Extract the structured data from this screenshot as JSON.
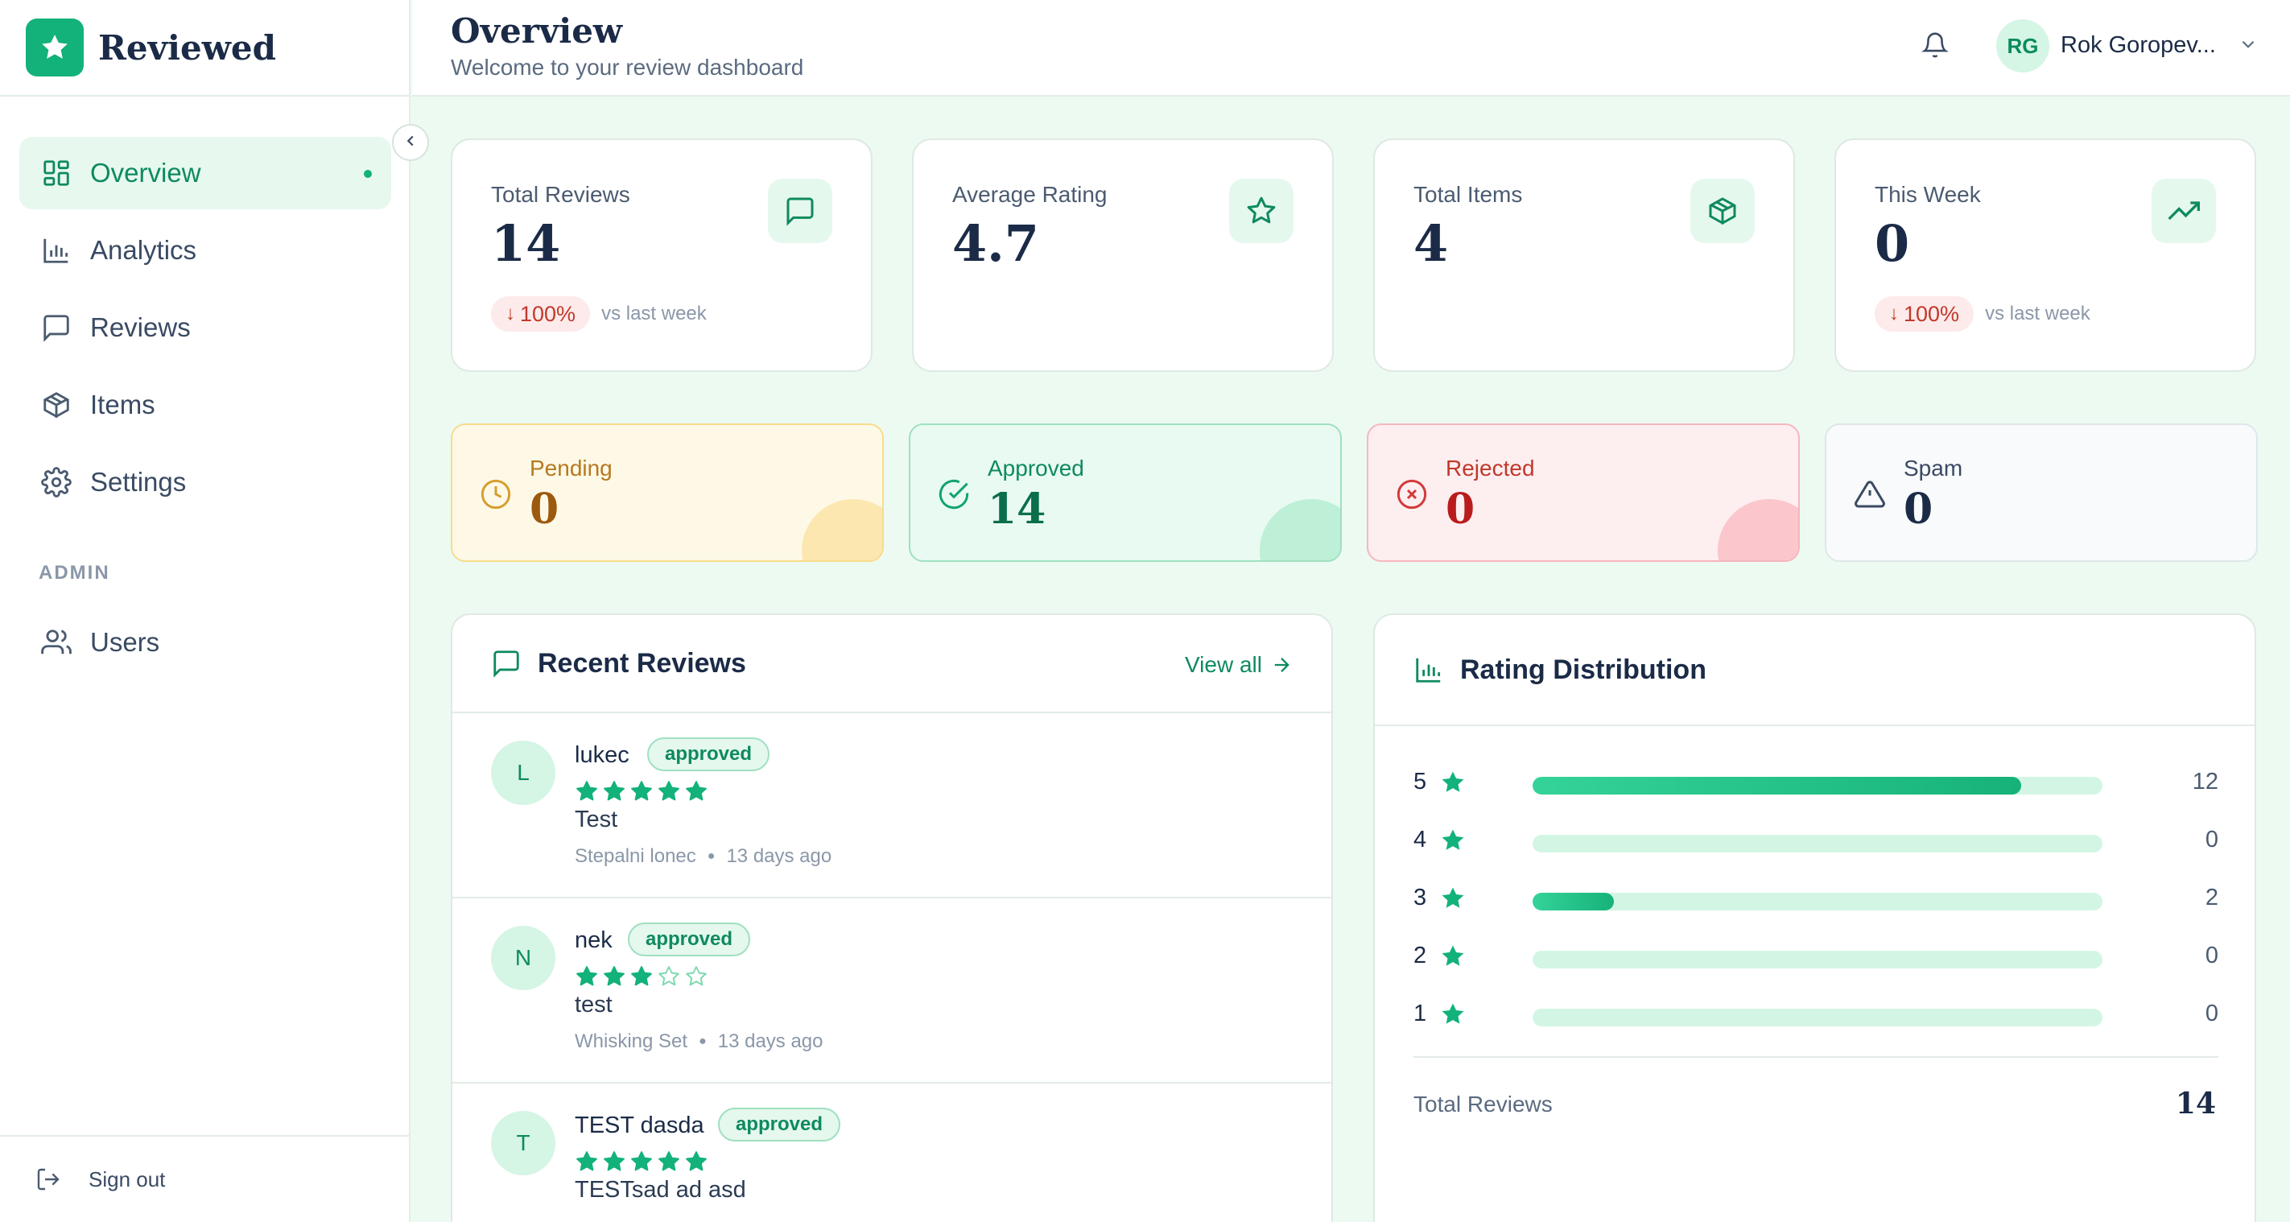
{
  "brand": {
    "name": "Reviewed"
  },
  "nav": {
    "items": [
      {
        "label": "Overview",
        "icon": "layout-grid-icon",
        "active": true
      },
      {
        "label": "Analytics",
        "icon": "bar-chart-icon"
      },
      {
        "label": "Reviews",
        "icon": "message-square-icon"
      },
      {
        "label": "Items",
        "icon": "box-icon"
      },
      {
        "label": "Settings",
        "icon": "gear-icon"
      }
    ],
    "section_admin": "ADMIN",
    "admin_items": [
      {
        "label": "Users",
        "icon": "users-icon"
      }
    ],
    "sign_out": "Sign out"
  },
  "header": {
    "title": "Overview",
    "subtitle": "Welcome to your review dashboard",
    "user_initials": "RG",
    "user_name": "Rok Goropev..."
  },
  "stats": [
    {
      "label": "Total Reviews",
      "value": "14",
      "icon": "message-square-icon",
      "trend": "100%",
      "trend_text": "vs last week"
    },
    {
      "label": "Average Rating",
      "value": "4.7",
      "icon": "star-icon"
    },
    {
      "label": "Total Items",
      "value": "4",
      "icon": "box-icon"
    },
    {
      "label": "This Week",
      "value": "0",
      "icon": "trending-up-icon",
      "trend": "100%",
      "trend_text": "vs last week"
    }
  ],
  "status": [
    {
      "label": "Pending",
      "value": "0",
      "icon": "clock-icon",
      "color": "#b7791f"
    },
    {
      "label": "Approved",
      "value": "14",
      "icon": "check-circle-icon",
      "color": "#0e8a5f"
    },
    {
      "label": "Rejected",
      "value": "0",
      "icon": "x-circle-icon",
      "color": "#c0392b"
    },
    {
      "label": "Spam",
      "value": "0",
      "icon": "alert-triangle-icon",
      "color": "#3a4a63"
    }
  ],
  "recent": {
    "title": "Recent Reviews",
    "view_all": "View all",
    "reviews": [
      {
        "initial": "L",
        "name": "lukec",
        "status": "approved",
        "rating": 5,
        "text": "Test",
        "item": "Stepalni lonec",
        "time": "13 days ago"
      },
      {
        "initial": "N",
        "name": "nek",
        "status": "approved",
        "rating": 3,
        "text": "test",
        "item": "Whisking Set",
        "time": "13 days ago"
      },
      {
        "initial": "T",
        "name": "TEST dasda",
        "status": "approved",
        "rating": 5,
        "text": "TESTsad ad asd",
        "item": "",
        "time": ""
      }
    ]
  },
  "distribution": {
    "title": "Rating Distribution",
    "rows": [
      {
        "stars": "5",
        "count": 12,
        "fraction": 0.857
      },
      {
        "stars": "4",
        "count": 0,
        "fraction": 0
      },
      {
        "stars": "3",
        "count": 2,
        "fraction": 0.143
      },
      {
        "stars": "2",
        "count": 0,
        "fraction": 0
      },
      {
        "stars": "1",
        "count": 0,
        "fraction": 0
      }
    ],
    "total_label": "Total Reviews",
    "total_value": "14"
  }
}
